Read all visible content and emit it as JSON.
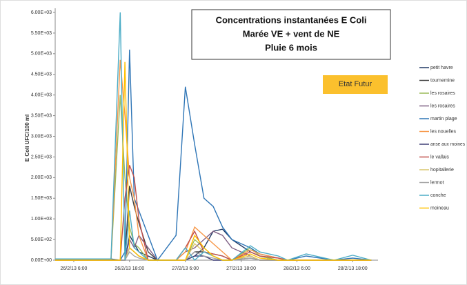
{
  "chart_data": {
    "type": "line",
    "title": [
      "Concentrations instantanées E Coli",
      "Marée VE + vent de NE",
      "Pluie  6 mois"
    ],
    "annotation": "Etat Futur",
    "y_label": "E Coli UFC/100 ml",
    "x": [
      "2013-02-26T02:00",
      "2013-02-26T14:00",
      "2013-02-26T16:00",
      "2013-02-26T17:00",
      "2013-02-26T18:00",
      "2013-02-26T19:00",
      "2013-02-26T20:00",
      "2013-02-26T22:00",
      "2013-02-27T00:00",
      "2013-02-27T04:00",
      "2013-02-27T06:00",
      "2013-02-27T08:00",
      "2013-02-27T10:00",
      "2013-02-27T12:00",
      "2013-02-27T14:00",
      "2013-02-27T16:00",
      "2013-02-27T20:00",
      "2013-02-27T22:00",
      "2013-02-28T02:00",
      "2013-02-28T04:00",
      "2013-02-28T08:00",
      "2013-02-28T14:00",
      "2013-02-28T18:00",
      "2013-02-28T22:00"
    ],
    "xlim": [
      "2013-02-26T02:00",
      "2013-02-28T23:00"
    ],
    "xticks": [
      {
        "value": "2013-02-26T06:00",
        "label": "26/2/13 6:00"
      },
      {
        "value": "2013-02-26T18:00",
        "label": "26/2/13 18:00"
      },
      {
        "value": "2013-02-27T06:00",
        "label": "27/2/13 6:00"
      },
      {
        "value": "2013-02-27T18:00",
        "label": "27/2/13 18:00"
      },
      {
        "value": "2013-02-28T06:00",
        "label": "28/2/13 6:00"
      },
      {
        "value": "2013-02-28T18:00",
        "label": "28/2/13 18:00"
      }
    ],
    "ylim": [
      0,
      6000
    ],
    "yticks": [
      {
        "value": 0,
        "label": "0.00E+00"
      },
      {
        "value": 500,
        "label": "5.00E+02"
      },
      {
        "value": 1000,
        "label": "1.00E+03"
      },
      {
        "value": 1500,
        "label": "1.50E+03"
      },
      {
        "value": 2000,
        "label": "2.00E+03"
      },
      {
        "value": 2500,
        "label": "2.50E+03"
      },
      {
        "value": 3000,
        "label": "3.00E+03"
      },
      {
        "value": 3500,
        "label": "3.50E+03"
      },
      {
        "value": 4000,
        "label": "4.00E+03"
      },
      {
        "value": 4500,
        "label": "4.50E+03"
      },
      {
        "value": 5000,
        "label": "5.00E+03"
      },
      {
        "value": 5500,
        "label": "5.50E+03"
      },
      {
        "value": 6000,
        "label": "6.00E+03"
      }
    ],
    "grid": false,
    "legend": "right",
    "series": [
      {
        "name": "petit havre",
        "color": "#1f3864",
        "values": [
          20,
          20,
          0,
          0,
          600,
          400,
          200,
          100,
          0,
          0,
          0,
          100,
          300,
          700,
          750,
          500,
          200,
          100,
          0,
          0,
          0,
          0,
          0,
          0
        ]
      },
      {
        "name": "tournemine",
        "color": "#404040",
        "values": [
          10,
          0,
          0,
          0,
          1800,
          1300,
          900,
          200,
          0,
          0,
          0,
          200,
          200,
          150,
          100,
          0,
          100,
          0,
          0,
          0,
          0,
          0,
          0,
          0
        ]
      },
      {
        "name": "les rosaires",
        "color": "#9bbb59",
        "values": [
          0,
          0,
          4000,
          2000,
          800,
          400,
          300,
          0,
          0,
          0,
          0,
          500,
          300,
          100,
          0,
          0,
          300,
          100,
          0,
          0,
          0,
          0,
          0,
          0
        ]
      },
      {
        "name": "les rosaires",
        "color": "#7f6084",
        "values": [
          0,
          0,
          0,
          0,
          500,
          300,
          600,
          300,
          0,
          0,
          200,
          300,
          500,
          700,
          600,
          300,
          100,
          0,
          0,
          0,
          0,
          0,
          0,
          0
        ]
      },
      {
        "name": "martin plage",
        "color": "#2e75b6",
        "values": [
          30,
          30,
          0,
          200,
          5100,
          1500,
          1200,
          600,
          0,
          600,
          4200,
          2800,
          1500,
          1300,
          800,
          500,
          300,
          150,
          50,
          0,
          100,
          0,
          50,
          0
        ]
      },
      {
        "name": "les nouelles",
        "color": "#f79646",
        "values": [
          0,
          0,
          4850,
          3500,
          2000,
          1500,
          600,
          0,
          0,
          0,
          200,
          800,
          600,
          400,
          200,
          0,
          250,
          150,
          50,
          0,
          0,
          0,
          0,
          0
        ]
      },
      {
        "name": "anse aux moines",
        "color": "#3f3f76",
        "values": [
          0,
          0,
          0,
          0,
          300,
          200,
          100,
          0,
          0,
          0,
          0,
          100,
          100,
          0,
          0,
          0,
          50,
          0,
          0,
          0,
          0,
          0,
          0,
          0
        ]
      },
      {
        "name": "le vallais",
        "color": "#c0504d",
        "values": [
          0,
          0,
          0,
          1500,
          2300,
          2000,
          1000,
          0,
          0,
          0,
          300,
          700,
          200,
          150,
          100,
          0,
          200,
          100,
          50,
          0,
          0,
          0,
          0,
          0
        ]
      },
      {
        "name": "hopitallerie",
        "color": "#d9c66c",
        "values": [
          0,
          0,
          0,
          0,
          300,
          200,
          100,
          0,
          0,
          0,
          0,
          400,
          200,
          100,
          0,
          0,
          100,
          0,
          0,
          0,
          0,
          0,
          0,
          0
        ]
      },
      {
        "name": "lermot",
        "color": "#a5a5a5",
        "values": [
          0,
          0,
          0,
          0,
          200,
          100,
          50,
          0,
          0,
          0,
          0,
          200,
          100,
          50,
          0,
          0,
          50,
          0,
          0,
          0,
          0,
          0,
          0,
          0
        ]
      },
      {
        "name": "conche",
        "color": "#4bacc6",
        "values": [
          30,
          30,
          6000,
          0,
          1200,
          300,
          200,
          0,
          0,
          0,
          300,
          0,
          200,
          100,
          0,
          0,
          350,
          200,
          100,
          0,
          150,
          0,
          120,
          0
        ]
      },
      {
        "name": "moineau",
        "color": "#ffc000",
        "values": [
          0,
          0,
          0,
          4800,
          300,
          200,
          100,
          0,
          0,
          0,
          0,
          600,
          300,
          100,
          0,
          0,
          150,
          50,
          0,
          0,
          0,
          0,
          0,
          0
        ]
      }
    ]
  }
}
